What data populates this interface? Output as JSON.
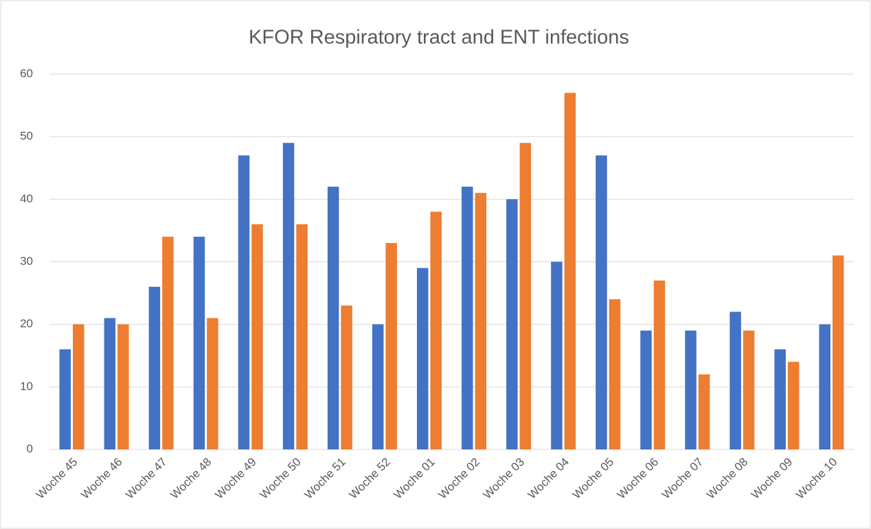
{
  "chart_data": {
    "type": "bar",
    "title": "KFOR Respiratory tract and ENT infections",
    "categories": [
      "Woche 45",
      "Woche 46",
      "Woche 47",
      "Woche 48",
      "Woche 49",
      "Woche 50",
      "Woche 51",
      "Woche 52",
      "Woche 01",
      "Woche 02",
      "Woche 03",
      "Woche 04",
      "Woche 05",
      "Woche 06",
      "Woche 07",
      "Woche 08",
      "Woche 09",
      "Woche 10"
    ],
    "series": [
      {
        "color": "#4472c4",
        "values": [
          16,
          21,
          26,
          34,
          47,
          49,
          42,
          20,
          29,
          42,
          40,
          30,
          47,
          19,
          19,
          22,
          16,
          20
        ]
      },
      {
        "color": "#ed7d31",
        "values": [
          20,
          20,
          34,
          21,
          36,
          36,
          23,
          33,
          38,
          41,
          49,
          57,
          24,
          27,
          12,
          19,
          14,
          31
        ]
      }
    ],
    "ylim": [
      0,
      60
    ],
    "yticks": [
      0,
      10,
      20,
      30,
      40,
      50,
      60
    ],
    "grid": true
  }
}
